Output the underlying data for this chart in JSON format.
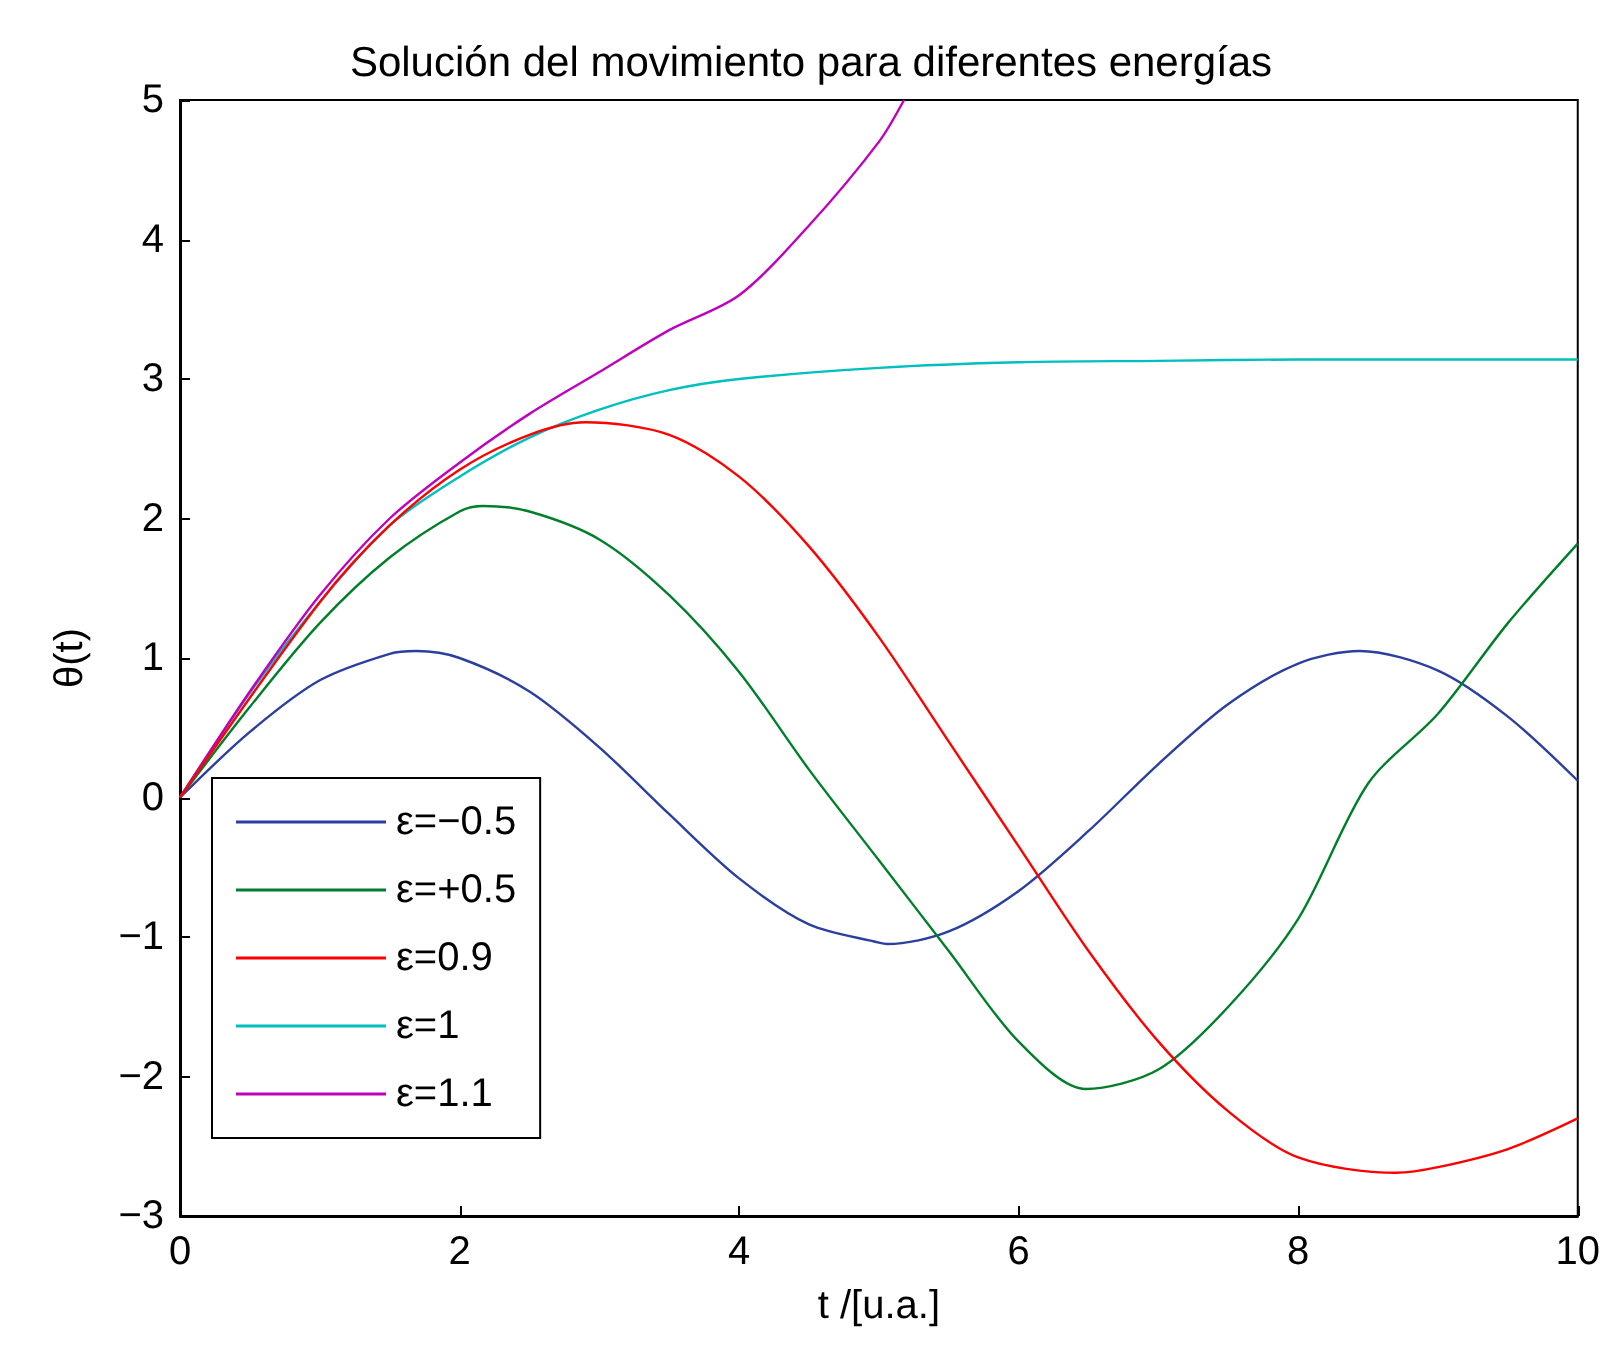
{
  "chart_data": {
    "type": "line",
    "title": "Solución del movimiento para diferentes energías",
    "xlabel": "t /[u.a.]",
    "ylabel": "θ(t)",
    "xlim": [
      0,
      10
    ],
    "ylim": [
      -3,
      5
    ],
    "xticks": [
      0,
      2,
      4,
      6,
      8,
      10
    ],
    "yticks": [
      -3,
      -2,
      -1,
      0,
      1,
      2,
      3,
      4,
      5
    ],
    "legend": "bottom left",
    "marker": "none",
    "line_style": "solid",
    "series": [
      {
        "name": "ε=−0.5",
        "color": "#2b3f9e",
        "x": [
          0,
          0.5,
          1,
          1.5,
          1.69,
          2,
          2.5,
          3,
          3.5,
          4,
          4.5,
          5,
          5.06,
          5.5,
          6,
          6.5,
          7,
          7.5,
          8,
          8.44,
          9,
          9.5,
          10
        ],
        "values": [
          0,
          0.47,
          0.84,
          1.03,
          1.05,
          1.0,
          0.76,
          0.36,
          -0.12,
          -0.58,
          -0.91,
          -1.04,
          -1.05,
          -0.96,
          -0.67,
          -0.24,
          0.24,
          0.67,
          0.96,
          1.05,
          0.91,
          0.58,
          0.12
        ]
      },
      {
        "name": "ε=+0.5",
        "color": "#007f2a",
        "x": [
          0,
          0.5,
          1,
          1.5,
          2,
          2.17,
          2.5,
          3,
          3.5,
          4,
          4.5,
          5,
          5.5,
          6,
          6.48,
          7,
          7.5,
          8,
          8.5,
          9,
          9.5,
          10
        ],
        "values": [
          0,
          0.65,
          1.25,
          1.72,
          2.05,
          2.09,
          2.05,
          1.85,
          1.45,
          0.9,
          0.2,
          -0.45,
          -1.1,
          -1.75,
          -2.09,
          -1.95,
          -1.5,
          -0.87,
          0.1,
          0.6,
          1.25,
          1.82
        ]
      },
      {
        "name": "ε=0.9",
        "color": "#ff0000",
        "x": [
          0,
          1,
          1.5,
          2,
          2.5,
          2.9,
          3.5,
          4,
          4.5,
          5,
          5.5,
          6,
          6.5,
          7,
          7.5,
          8,
          8.7,
          9,
          9.5,
          10
        ],
        "values": [
          0,
          1.4,
          1.95,
          2.35,
          2.6,
          2.69,
          2.6,
          2.3,
          1.8,
          1.15,
          0.4,
          -0.35,
          -1.1,
          -1.75,
          -2.25,
          -2.58,
          -2.69,
          -2.65,
          -2.52,
          -2.3
        ]
      },
      {
        "name": "ε=1",
        "color": "#00bfbf",
        "x": [
          0,
          0.5,
          1,
          1.5,
          2,
          2.5,
          3,
          3.5,
          4,
          5,
          6,
          7,
          8,
          10
        ],
        "values": [
          0,
          0.75,
          1.4,
          1.95,
          2.3,
          2.58,
          2.78,
          2.92,
          3.0,
          3.08,
          3.12,
          3.13,
          3.14,
          3.14
        ]
      },
      {
        "name": "ε=1.1",
        "color": "#bf00bf",
        "x": [
          0,
          0.5,
          1,
          1.5,
          2,
          2.5,
          3,
          3.5,
          4,
          4.5,
          5,
          5.18
        ],
        "values": [
          0,
          0.76,
          1.45,
          2.0,
          2.4,
          2.75,
          3.05,
          3.35,
          3.6,
          4.1,
          4.7,
          5
        ]
      }
    ]
  }
}
